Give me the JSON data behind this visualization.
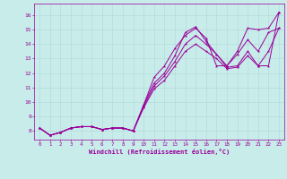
{
  "xlabel": "Windchill (Refroidissement éolien,°C)",
  "bg_color": "#c8ecea",
  "line_color": "#990099",
  "grid_color": "#b0d8d8",
  "xlim": [
    -0.5,
    23.5
  ],
  "ylim": [
    7.4,
    16.8
  ],
  "xticks": [
    0,
    1,
    2,
    3,
    4,
    5,
    6,
    7,
    8,
    9,
    10,
    11,
    12,
    13,
    14,
    15,
    16,
    17,
    18,
    19,
    20,
    21,
    22,
    23
  ],
  "yticks": [
    8,
    9,
    10,
    11,
    12,
    13,
    14,
    15,
    16
  ],
  "series": [
    {
      "x": [
        0,
        1,
        2,
        3,
        4,
        5,
        6,
        7,
        8,
        9,
        10,
        11,
        12,
        13,
        14,
        15,
        16,
        17,
        18,
        19,
        20,
        21,
        22,
        23
      ],
      "y": [
        8.2,
        7.7,
        7.9,
        8.2,
        8.3,
        8.3,
        8.1,
        8.2,
        8.2,
        8.0,
        9.6,
        10.9,
        11.5,
        12.5,
        13.5,
        14.0,
        13.5,
        13.0,
        12.3,
        12.4,
        13.2,
        12.5,
        12.5,
        16.2
      ]
    },
    {
      "x": [
        0,
        1,
        2,
        3,
        4,
        5,
        6,
        7,
        8,
        9,
        10,
        11,
        12,
        13,
        14,
        15,
        16,
        17,
        18,
        19,
        20,
        21,
        22,
        23
      ],
      "y": [
        8.2,
        7.7,
        7.9,
        8.2,
        8.3,
        8.3,
        8.1,
        8.2,
        8.2,
        8.0,
        9.7,
        11.1,
        11.8,
        12.8,
        14.0,
        14.6,
        14.0,
        13.3,
        12.4,
        12.5,
        13.5,
        12.5,
        13.5,
        15.1
      ]
    },
    {
      "x": [
        0,
        1,
        2,
        3,
        4,
        5,
        6,
        7,
        8,
        9,
        10,
        11,
        12,
        13,
        14,
        15,
        16,
        17,
        18,
        19,
        20,
        21,
        22,
        23
      ],
      "y": [
        8.2,
        7.7,
        7.9,
        8.2,
        8.3,
        8.3,
        8.1,
        8.2,
        8.2,
        8.0,
        9.8,
        11.3,
        12.0,
        13.2,
        14.8,
        15.2,
        14.2,
        13.3,
        12.5,
        13.3,
        14.3,
        13.5,
        14.8,
        15.1
      ]
    },
    {
      "x": [
        0,
        1,
        2,
        3,
        4,
        5,
        6,
        7,
        8,
        9,
        10,
        11,
        12,
        13,
        14,
        15,
        16,
        17,
        18,
        19,
        20,
        21,
        22,
        23
      ],
      "y": [
        8.2,
        7.7,
        7.9,
        8.2,
        8.3,
        8.3,
        8.1,
        8.2,
        8.2,
        8.0,
        9.8,
        11.7,
        12.5,
        13.7,
        14.6,
        15.1,
        14.4,
        12.5,
        12.5,
        13.5,
        15.1,
        15.0,
        15.1,
        16.2
      ]
    }
  ],
  "figsize": [
    3.2,
    2.0
  ],
  "dpi": 100
}
